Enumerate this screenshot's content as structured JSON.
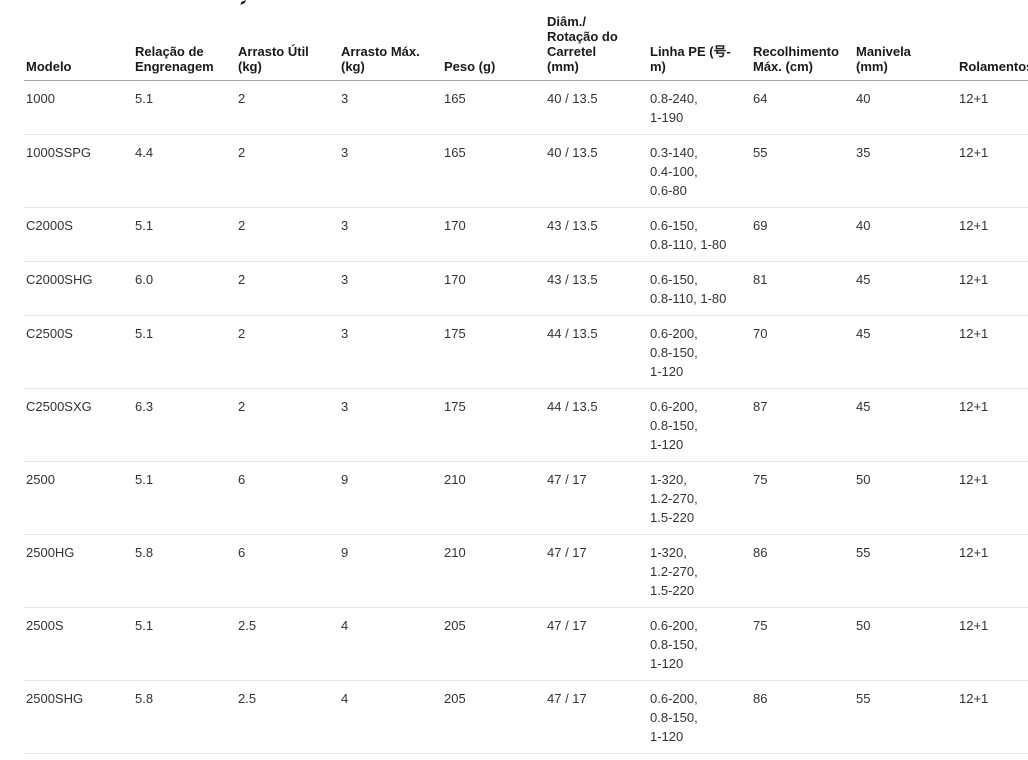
{
  "colors": {
    "background": "#ffffff",
    "header_text": "#1a1a1a",
    "body_text": "#333333",
    "header_border": "#a8a8a8",
    "row_border": "#e7e7e7"
  },
  "table": {
    "columns": [
      {
        "id": "modelo",
        "label": [
          "Modelo"
        ]
      },
      {
        "id": "relacao",
        "label": [
          "Relação de",
          "Engrenagem"
        ]
      },
      {
        "id": "arrasto_util",
        "label": [
          "Arrasto Útil",
          "(kg)"
        ]
      },
      {
        "id": "arrasto_max",
        "label": [
          "Arrasto Máx.",
          "(kg)"
        ]
      },
      {
        "id": "peso",
        "label": [
          "Peso (g)"
        ]
      },
      {
        "id": "diam",
        "label": [
          "Diâm./",
          "Rotação do",
          "Carretel",
          "(mm)"
        ]
      },
      {
        "id": "linha_pe",
        "label": [
          "Linha PE (号-",
          "m)"
        ]
      },
      {
        "id": "recolhimento",
        "label": [
          "Recolhimento",
          "Máx. (cm)"
        ]
      },
      {
        "id": "manivela",
        "label": [
          "Manivela",
          "(mm)"
        ]
      },
      {
        "id": "rolamentos",
        "label": [
          "Rolamentos"
        ]
      }
    ],
    "rows": [
      {
        "modelo": "1000",
        "relacao": "5.1",
        "arrasto_util": "2",
        "arrasto_max": "3",
        "peso": "165",
        "diam": "40 / 13.5",
        "linha_pe": [
          "0.8-240,",
          "1-190"
        ],
        "recolhimento": "64",
        "manivela": "40",
        "rolamentos": "12+1"
      },
      {
        "modelo": "1000SSPG",
        "relacao": "4.4",
        "arrasto_util": "2",
        "arrasto_max": "3",
        "peso": "165",
        "diam": "40 / 13.5",
        "linha_pe": [
          "0.3-140,",
          "0.4-100,",
          "0.6-80"
        ],
        "recolhimento": "55",
        "manivela": "35",
        "rolamentos": "12+1"
      },
      {
        "modelo": "C2000S",
        "relacao": "5.1",
        "arrasto_util": "2",
        "arrasto_max": "3",
        "peso": "170",
        "diam": "43 / 13.5",
        "linha_pe": [
          "0.6-150,",
          "0.8-110, 1-80"
        ],
        "recolhimento": "69",
        "manivela": "40",
        "rolamentos": "12+1"
      },
      {
        "modelo": "C2000SHG",
        "relacao": "6.0",
        "arrasto_util": "2",
        "arrasto_max": "3",
        "peso": "170",
        "diam": "43 / 13.5",
        "linha_pe": [
          "0.6-150,",
          "0.8-110, 1-80"
        ],
        "recolhimento": "81",
        "manivela": "45",
        "rolamentos": "12+1"
      },
      {
        "modelo": "C2500S",
        "relacao": "5.1",
        "arrasto_util": "2",
        "arrasto_max": "3",
        "peso": "175",
        "diam": "44 / 13.5",
        "linha_pe": [
          "0.6-200,",
          "0.8-150,",
          "1-120"
        ],
        "recolhimento": "70",
        "manivela": "45",
        "rolamentos": "12+1"
      },
      {
        "modelo": "C2500SXG",
        "relacao": "6.3",
        "arrasto_util": "2",
        "arrasto_max": "3",
        "peso": "175",
        "diam": "44 / 13.5",
        "linha_pe": [
          "0.6-200,",
          "0.8-150,",
          "1-120"
        ],
        "recolhimento": "87",
        "manivela": "45",
        "rolamentos": "12+1"
      },
      {
        "modelo": "2500",
        "relacao": "5.1",
        "arrasto_util": "6",
        "arrasto_max": "9",
        "peso": "210",
        "diam": "47 / 17",
        "linha_pe": [
          "1-320,",
          "1.2-270,",
          "1.5-220"
        ],
        "recolhimento": "75",
        "manivela": "50",
        "rolamentos": "12+1"
      },
      {
        "modelo": "2500HG",
        "relacao": "5.8",
        "arrasto_util": "6",
        "arrasto_max": "9",
        "peso": "210",
        "diam": "47 / 17",
        "linha_pe": [
          "1-320,",
          "1.2-270,",
          "1.5-220"
        ],
        "recolhimento": "86",
        "manivela": "55",
        "rolamentos": "12+1"
      },
      {
        "modelo": "2500S",
        "relacao": "5.1",
        "arrasto_util": "2.5",
        "arrasto_max": "4",
        "peso": "205",
        "diam": "47 / 17",
        "linha_pe": [
          "0.6-200,",
          "0.8-150,",
          "1-120"
        ],
        "recolhimento": "75",
        "manivela": "50",
        "rolamentos": "12+1"
      },
      {
        "modelo": "2500SHG",
        "relacao": "5.8",
        "arrasto_util": "2.5",
        "arrasto_max": "4",
        "peso": "205",
        "diam": "47 / 17",
        "linha_pe": [
          "0.6-200,",
          "0.8-150,",
          "1-120"
        ],
        "recolhimento": "86",
        "manivela": "55",
        "rolamentos": "12+1"
      }
    ]
  }
}
